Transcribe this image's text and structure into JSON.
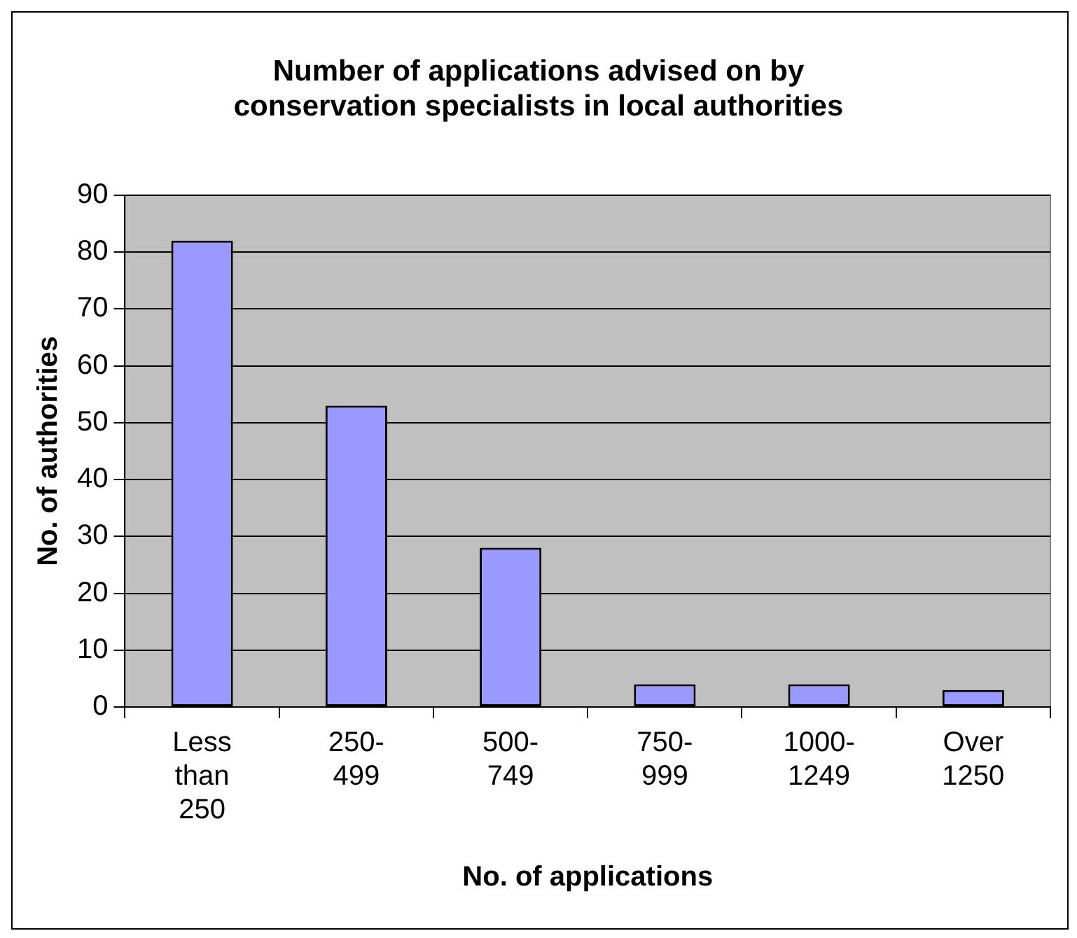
{
  "chart_data": {
    "type": "bar",
    "title": "Number of applications advised on by conservation specialists in local authorities",
    "xlabel": "No. of applications",
    "ylabel": "No. of authorities",
    "categories": [
      "Less than 250",
      "250-499",
      "500-749",
      "750-999",
      "1000-1249",
      "Over 1250"
    ],
    "values": [
      82,
      53,
      28,
      4,
      4,
      3
    ],
    "color": "#9999ff",
    "ylim": [
      0,
      90
    ],
    "yticks": [
      0,
      10,
      20,
      30,
      40,
      50,
      60,
      70,
      80,
      90
    ],
    "grid": "y",
    "legend": false
  }
}
